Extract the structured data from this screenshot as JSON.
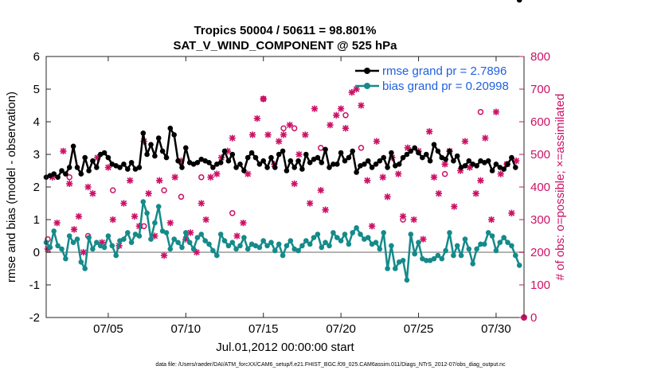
{
  "chart_data": {
    "type": "line",
    "title_line1": "Tropics 50004 / 50611 = 98.801%",
    "title_line2": "SAT_V_WIND_COMPONENT @ 525 hPa",
    "xlabel": "Jul.01,2012 00:00:00 start",
    "ylabel_left": "rmse and bias (model - observation)",
    "ylabel_right": "# of obs: o=possible; ×=assimilated",
    "xlim": [
      1,
      31.8
    ],
    "ylim_left": [
      -2,
      6
    ],
    "ylim_right": [
      0,
      800
    ],
    "x_ticks": [
      5,
      10,
      15,
      20,
      25,
      30
    ],
    "x_tick_labels": [
      "07/05",
      "07/10",
      "07/15",
      "07/20",
      "07/25",
      "07/30"
    ],
    "y_left_ticks": [
      "6",
      "5",
      "4",
      "3",
      "2",
      "1",
      "0",
      "-1",
      "-2"
    ],
    "y_right_ticks": [
      "800",
      "700",
      "600",
      "500",
      "400",
      "300",
      "200",
      "100",
      "0"
    ],
    "legend": [
      {
        "label": "rmse grand pr = 2.7896",
        "color": "#000000"
      },
      {
        "label": "bias grand pr = 0.20998",
        "color": "#158a8a"
      }
    ],
    "colors": {
      "rmse": "#000000",
      "bias": "#158a8a",
      "obs": "#cc1166",
      "legend_text": "#1f5fe0",
      "zero_line": "#b3b3b3"
    },
    "rmse_x": [
      1,
      1.25,
      1.5,
      1.75,
      2,
      2.25,
      2.5,
      2.75,
      3,
      3.25,
      3.5,
      3.75,
      4,
      4.25,
      4.5,
      4.75,
      5,
      5.25,
      5.5,
      5.75,
      6,
      6.25,
      6.5,
      6.75,
      7,
      7.25,
      7.5,
      7.75,
      8,
      8.25,
      8.5,
      8.75,
      9,
      9.25,
      9.5,
      9.75,
      10,
      10.25,
      10.5,
      10.75,
      11,
      11.25,
      11.5,
      11.75,
      12,
      12.25,
      12.5,
      12.75,
      13,
      13.25,
      13.5,
      13.75,
      14,
      14.25,
      14.5,
      14.75,
      15,
      15.25,
      15.5,
      15.75,
      16,
      16.25,
      16.5,
      16.75,
      17,
      17.25,
      17.5,
      17.75,
      18,
      18.25,
      18.5,
      18.75,
      19,
      19.25,
      19.5,
      19.75,
      20,
      20.25,
      20.5,
      20.75,
      21,
      21.25,
      21.5,
      21.75,
      22,
      22.25,
      22.5,
      22.75,
      23,
      23.25,
      23.5,
      23.75,
      24,
      24.25,
      24.5,
      24.75,
      25,
      25.25,
      25.5,
      25.75,
      26,
      26.25,
      26.5,
      26.75,
      27,
      27.25,
      27.5,
      27.75,
      28,
      28.25,
      28.5,
      28.75,
      29,
      29.25,
      29.5,
      29.75,
      30,
      30.25,
      30.5,
      30.75,
      31,
      31.25,
      31.5
    ],
    "rmse_y": [
      2.3,
      2.35,
      2.4,
      2.3,
      2.5,
      2.4,
      2.6,
      3.25,
      2.6,
      2.4,
      2.9,
      2.5,
      2.8,
      2.6,
      3.0,
      3.05,
      2.9,
      2.7,
      2.65,
      2.6,
      2.7,
      2.55,
      2.75,
      2.55,
      2.6,
      3.65,
      3.0,
      3.3,
      2.95,
      3.5,
      3.1,
      2.9,
      3.8,
      3.6,
      2.8,
      2.6,
      3.2,
      2.75,
      2.7,
      2.75,
      2.85,
      2.8,
      2.75,
      2.6,
      2.7,
      2.75,
      3.1,
      2.8,
      3.0,
      2.6,
      2.7,
      2.5,
      2.9,
      3.05,
      2.9,
      2.7,
      2.8,
      2.6,
      2.9,
      2.6,
      3.0,
      3.1,
      2.5,
      2.8,
      2.6,
      2.8,
      2.55,
      3.0,
      2.75,
      2.85,
      2.9,
      2.75,
      3.15,
      2.6,
      2.7,
      2.7,
      3.05,
      2.8,
      2.9,
      3.1,
      2.45,
      2.65,
      2.7,
      2.8,
      2.6,
      2.7,
      2.8,
      2.9,
      2.6,
      3.05,
      2.65,
      2.7,
      2.9,
      3.0,
      3.1,
      3.2,
      3.05,
      2.9,
      3.0,
      2.8,
      3.3,
      3.1,
      2.9,
      2.85,
      3.1,
      2.8,
      2.95,
      2.6,
      2.65,
      2.8,
      2.7,
      2.65,
      2.8,
      2.75,
      2.8,
      2.5,
      2.7,
      2.6,
      2.55,
      2.7,
      2.9,
      2.6
    ],
    "bias_x": [
      1,
      1.25,
      1.5,
      1.75,
      2,
      2.25,
      2.5,
      2.75,
      3,
      3.25,
      3.5,
      3.75,
      4,
      4.25,
      4.5,
      4.75,
      5,
      5.25,
      5.5,
      5.75,
      6,
      6.25,
      6.5,
      6.75,
      7,
      7.25,
      7.5,
      7.75,
      8,
      8.25,
      8.5,
      8.75,
      9,
      9.25,
      9.5,
      9.75,
      10,
      10.25,
      10.5,
      10.75,
      11,
      11.25,
      11.5,
      11.75,
      12,
      12.25,
      12.5,
      12.75,
      13,
      13.25,
      13.5,
      13.75,
      14,
      14.25,
      14.5,
      14.75,
      15,
      15.25,
      15.5,
      15.75,
      16,
      16.25,
      16.5,
      16.75,
      17,
      17.25,
      17.5,
      17.75,
      18,
      18.25,
      18.5,
      18.75,
      19,
      19.25,
      19.5,
      19.75,
      20,
      20.25,
      20.5,
      20.75,
      21,
      21.25,
      21.5,
      21.75,
      22,
      22.25,
      22.5,
      22.75,
      23,
      23.25,
      23.5,
      23.75,
      24,
      24.25,
      24.5,
      24.75,
      25,
      25.25,
      25.5,
      25.75,
      26,
      26.25,
      26.5,
      26.75,
      27,
      27.25,
      27.5,
      27.75,
      28,
      28.25,
      28.5,
      28.75,
      29,
      29.25,
      29.5,
      29.75,
      30,
      30.25,
      30.5,
      30.75,
      31,
      31.25,
      31.5
    ],
    "bias_y": [
      0.3,
      0.15,
      0.65,
      0.2,
      0.1,
      -0.2,
      0.5,
      0.3,
      0.4,
      -0.3,
      -0.5,
      0.45,
      0.1,
      0.3,
      0.2,
      0.15,
      0.5,
      0.2,
      -0.1,
      0.35,
      0.4,
      0.6,
      0.3,
      0.55,
      0.5,
      1.55,
      1.2,
      0.4,
      0.9,
      1.4,
      0.65,
      0.6,
      0.1,
      0.4,
      0.3,
      0.15,
      0.6,
      0.3,
      0.1,
      0.45,
      0.55,
      0.35,
      0.25,
      0.05,
      -0.1,
      0.55,
      0.35,
      0.2,
      0.3,
      0.1,
      0.2,
      0.45,
      0.1,
      0.25,
      0.2,
      0.15,
      0.35,
      0.2,
      0.3,
      0.05,
      0.25,
      -0.1,
      0.2,
      0.35,
      0.1,
      0.05,
      0.2,
      0.35,
      0.25,
      0.45,
      0.55,
      0.15,
      0.3,
      0.2,
      0.6,
      0.45,
      0.35,
      0.55,
      0.25,
      0.6,
      0.75,
      0.55,
      0.4,
      0.45,
      0.25,
      0.3,
      0.1,
      0.6,
      -0.5,
      0.2,
      -0.5,
      -0.3,
      -0.25,
      -0.85,
      0.55,
      -0.05,
      0.3,
      -0.2,
      -0.25,
      -0.25,
      -0.2,
      -0.1,
      -0.2,
      0.05,
      0.6,
      -0.1,
      0.2,
      -0.1,
      0.4,
      0.1,
      -0.35,
      0.1,
      0.25,
      0.25,
      0.6,
      0.5,
      0.05,
      0.3,
      0.45,
      0.3,
      0.2,
      -0.1,
      -0.4
    ],
    "obs_assimilated_x": [
      1.1,
      1.4,
      1.7,
      2.1,
      2.5,
      2.8,
      3.1,
      3.4,
      3.7,
      4.0,
      4.3,
      4.6,
      5.0,
      5.3,
      5.7,
      6.0,
      6.4,
      6.7,
      7.0,
      7.3,
      7.6,
      8.0,
      8.3,
      8.6,
      9.0,
      9.3,
      9.7,
      10.0,
      10.3,
      10.7,
      11.0,
      11.3,
      11.6,
      12.0,
      12.3,
      12.7,
      13.0,
      13.3,
      13.7,
      14.0,
      14.3,
      14.6,
      15.0,
      15.3,
      15.7,
      16.0,
      16.3,
      16.7,
      17.0,
      17.3,
      17.7,
      18.0,
      18.3,
      18.7,
      19.0,
      19.3,
      19.7,
      20.0,
      20.3,
      20.7,
      21.0,
      21.3,
      21.7,
      22.0,
      22.3,
      22.7,
      23.0,
      23.3,
      23.7,
      24.0,
      24.3,
      24.7,
      25.0,
      25.3,
      25.7,
      26.0,
      26.3,
      26.7,
      27.0,
      27.3,
      27.7,
      28.0,
      28.3,
      28.7,
      29.0,
      29.3,
      29.7,
      30.0,
      30.3,
      30.7,
      31.0,
      31.3
    ],
    "obs_assimilated_y": [
      210,
      430,
      290,
      510,
      410,
      270,
      310,
      200,
      400,
      380,
      490,
      230,
      460,
      300,
      220,
      350,
      420,
      310,
      280,
      540,
      380,
      250,
      420,
      190,
      290,
      430,
      480,
      240,
      260,
      200,
      350,
      300,
      430,
      440,
      490,
      510,
      550,
      250,
      290,
      440,
      560,
      610,
      670,
      560,
      470,
      540,
      560,
      590,
      410,
      500,
      560,
      350,
      640,
      390,
      330,
      590,
      620,
      640,
      580,
      690,
      700,
      650,
      420,
      280,
      540,
      430,
      370,
      490,
      440,
      310,
      520,
      300,
      510,
      240,
      570,
      430,
      380,
      470,
      510,
      340,
      450,
      540,
      460,
      380,
      420,
      550,
      300,
      630,
      440,
      470,
      320,
      480
    ],
    "obs_possible_x": [
      1.1,
      2.5,
      3.7,
      5.3,
      7.3,
      8.6,
      9.7,
      11.0,
      13.0,
      15.0,
      16.3,
      17.0,
      18.7,
      20.3,
      21.3,
      24.0,
      26.7,
      29.0,
      30.7
    ],
    "obs_possible_y": [
      240,
      430,
      250,
      390,
      280,
      390,
      370,
      430,
      320,
      670,
      580,
      580,
      520,
      620,
      520,
      300,
      440,
      630,
      470
    ],
    "footnote": "data file: /Users/raeder/DAI/ATM_forcXX/CAM6_setup/f.e21.FHIST_BGC.f09_025.CAM6assim.011/Diags_NTrS_2012-07/obs_diag_output.nc"
  }
}
